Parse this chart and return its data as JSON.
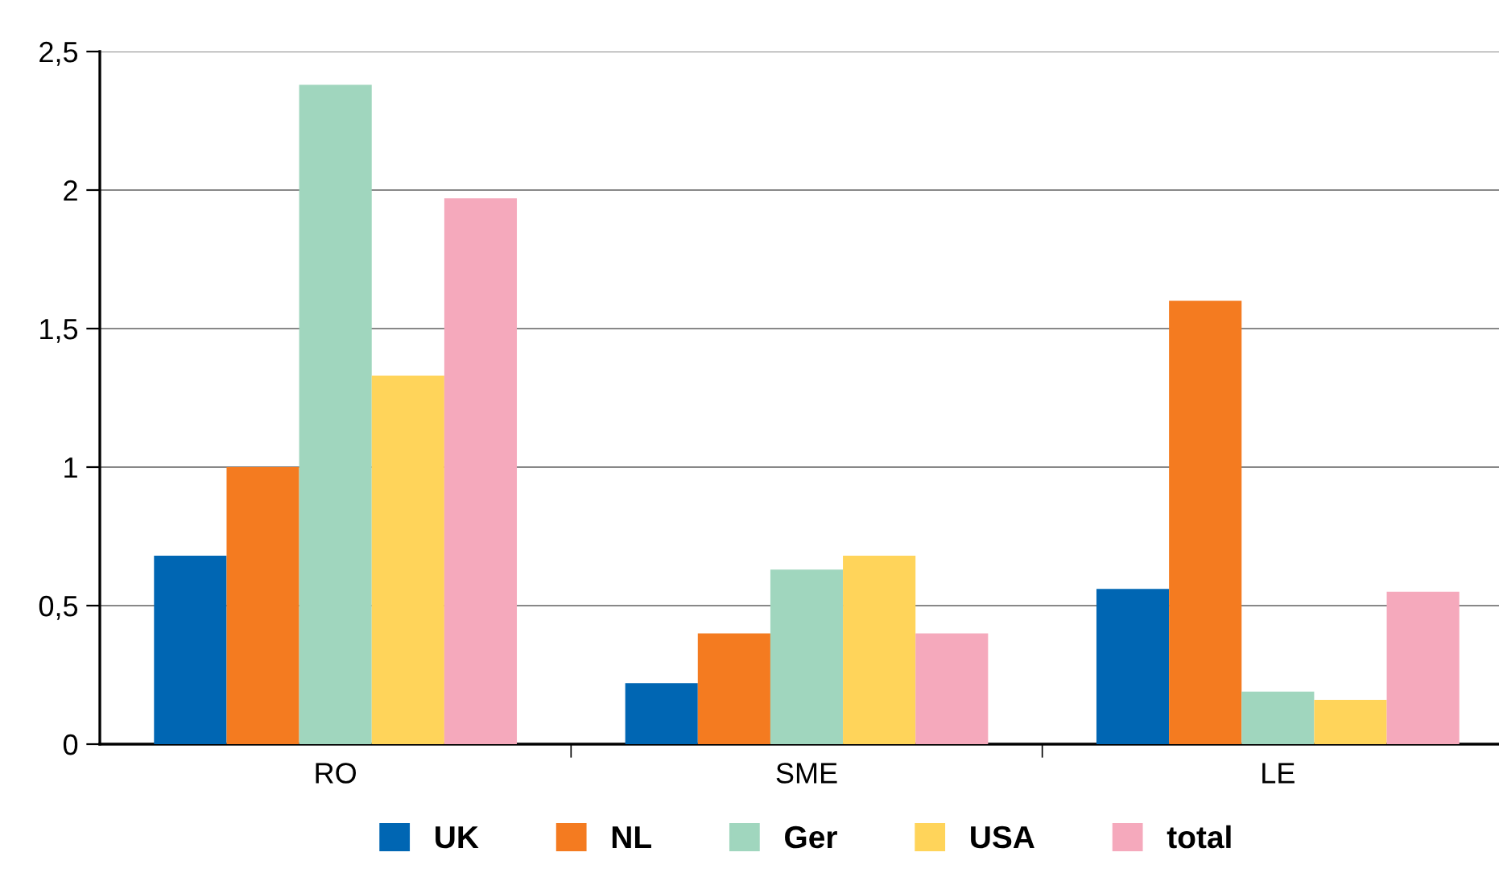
{
  "chart_data": {
    "type": "bar",
    "categories": [
      "RO",
      "SME",
      "LE"
    ],
    "series": [
      {
        "name": "UK",
        "color": "#0066b3",
        "values": [
          0.68,
          0.22,
          0.56
        ]
      },
      {
        "name": "NL",
        "color": "#f47b20",
        "values": [
          1.0,
          0.4,
          1.6
        ]
      },
      {
        "name": "Ger",
        "color": "#a0d6be",
        "values": [
          2.38,
          0.63,
          0.19
        ]
      },
      {
        "name": "USA",
        "color": "#ffd45a",
        "values": [
          1.33,
          0.68,
          0.16
        ]
      },
      {
        "name": "total",
        "color": "#f5a9bc",
        "values": [
          1.97,
          0.4,
          0.55
        ]
      }
    ],
    "ylim": [
      0,
      2.5
    ],
    "yticks": [
      0,
      {
        "value": 0.5,
        "label": "0,5"
      },
      1,
      {
        "value": 1.5,
        "label": "1,5"
      },
      2,
      {
        "value": 2.5,
        "label": "2,5"
      }
    ],
    "grid": "y",
    "legend": "bottom"
  }
}
